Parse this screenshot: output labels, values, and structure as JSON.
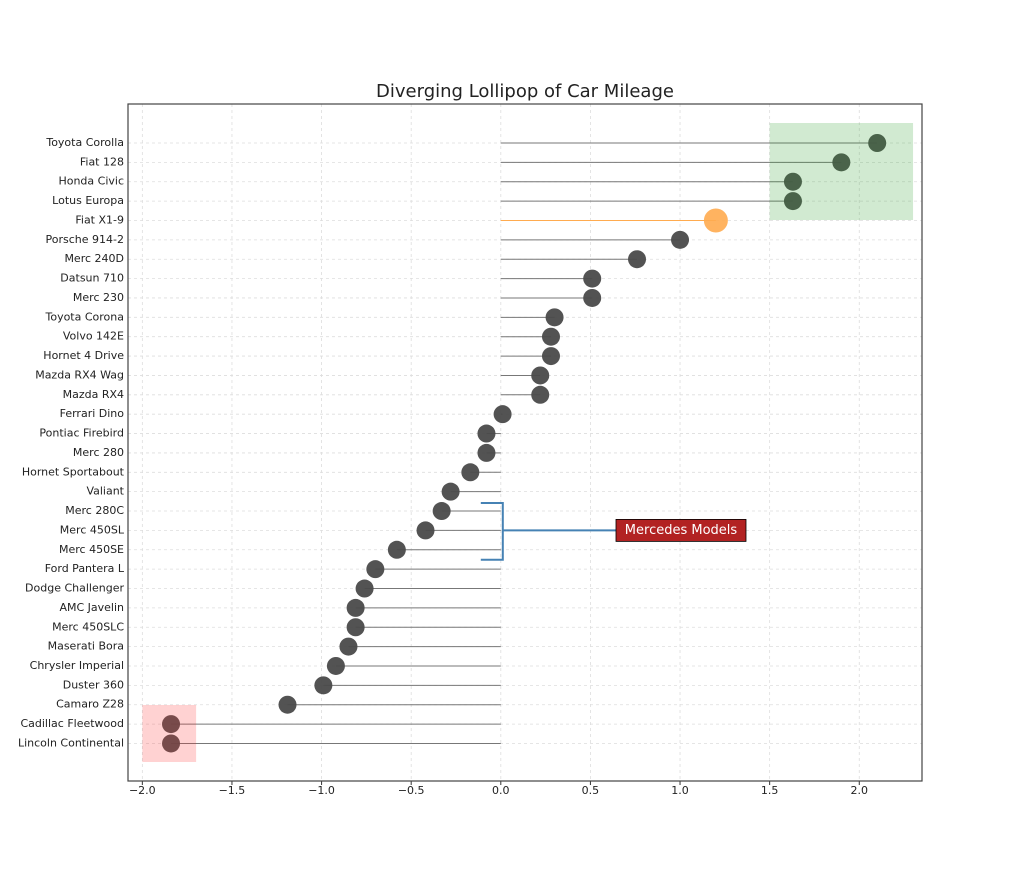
{
  "chart_data": {
    "type": "lollipop",
    "title": "Diverging Lollipop of Car Mileage",
    "categories": [
      "Toyota Corolla",
      "Fiat 128",
      "Honda Civic",
      "Lotus Europa",
      "Fiat X1-9",
      "Porsche 914-2",
      "Merc 240D",
      "Datsun 710",
      "Merc 230",
      "Toyota Corona",
      "Volvo 142E",
      "Hornet 4 Drive",
      "Mazda RX4 Wag",
      "Mazda RX4",
      "Ferrari Dino",
      "Pontiac Firebird",
      "Merc 280",
      "Hornet Sportabout",
      "Valiant",
      "Merc 280C",
      "Merc 450SL",
      "Merc 450SE",
      "Ford Pantera L",
      "Dodge Challenger",
      "AMC Javelin",
      "Merc 450SLC",
      "Maserati Bora",
      "Chrysler Imperial",
      "Duster 360",
      "Camaro Z28",
      "Cadillac Fleetwood",
      "Lincoln Continental"
    ],
    "values": [
      2.1,
      1.9,
      1.63,
      1.63,
      1.2,
      1.0,
      0.76,
      0.51,
      0.51,
      0.3,
      0.28,
      0.28,
      0.22,
      0.22,
      0.01,
      -0.08,
      -0.08,
      -0.17,
      -0.28,
      -0.33,
      -0.42,
      -0.58,
      -0.7,
      -0.76,
      -0.81,
      -0.81,
      -0.85,
      -0.92,
      -0.99,
      -1.19,
      -1.84,
      -1.84
    ],
    "color": "#4a4a4a",
    "highlight": "Fiat X1-9",
    "highlight_color": "#ffab4f",
    "xlim": [
      -2.08,
      2.35
    ],
    "xticks": [
      {
        "value": -2.0,
        "label": "−2.0"
      },
      {
        "value": -1.5,
        "label": "−1.5"
      },
      {
        "value": -1.0,
        "label": "−1.0"
      },
      {
        "value": -0.5,
        "label": "−0.5"
      },
      {
        "value": 0,
        "label": "0.0"
      },
      0.5,
      {
        "value": 1,
        "label": "1.0"
      },
      1.5,
      {
        "value": 2,
        "label": "2.0"
      }
    ],
    "grid": true,
    "annotation": "Mercedes Models",
    "shaded_regions": [
      {
        "x": [
          1.5,
          2.3
        ],
        "color": "#2ca02c"
      },
      {
        "x": [
          -2.0,
          -1.7
        ],
        "color": "#ff3333"
      }
    ]
  }
}
